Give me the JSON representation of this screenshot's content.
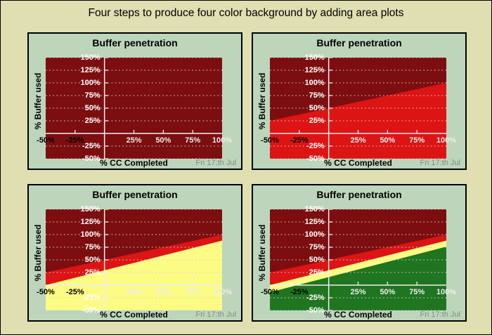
{
  "page": {
    "title": "Four steps to produce four color background by adding area plots",
    "background_color": "#DFDFB2",
    "border_color": "#000000"
  },
  "style": {
    "panel_background": "#BDD5BB",
    "panel_border": "#000000",
    "axis_color": "#EFEFEF",
    "grid_color": "#D2D2D2",
    "negative_x_label_color": "#000000",
    "positive_x_label_color": "#ECECEC",
    "y_label_color": "#FFFFFF",
    "date_color": "#828E82"
  },
  "chart_data": [
    {
      "type": "area",
      "title": "Buffer penetration",
      "xlabel": "% CC Completed",
      "ylabel": "% Buffer used",
      "date_label": "Fri 17:th Jul",
      "xlim": [
        -50,
        100
      ],
      "ylim": [
        -50,
        150
      ],
      "plot_background": "#7C0E10",
      "grid": "horizontal dotted white lines every 25%",
      "x_ticks": [
        {
          "label": "-50%",
          "value": -50,
          "color": "#000000"
        },
        {
          "label": "-25%",
          "value": -25,
          "color": "#000000"
        },
        {
          "label": "25%",
          "value": 25,
          "color": "#ECECEC"
        },
        {
          "label": "50%",
          "value": 50,
          "color": "#ECECEC"
        },
        {
          "label": "75%",
          "value": 75,
          "color": "#ECECEC"
        },
        {
          "label": "100%",
          "value": 100,
          "color": "#ECECEC"
        }
      ],
      "y_ticks": [
        {
          "label": "150%",
          "value": 150,
          "color": "#FFFFFF"
        },
        {
          "label": "125%",
          "value": 125,
          "color": "#FFFFFF"
        },
        {
          "label": "100%",
          "value": 100,
          "color": "#FFFFFF"
        },
        {
          "label": "75%",
          "value": 75,
          "color": "#FFFFFF"
        },
        {
          "label": "50%",
          "value": 50,
          "color": "#FFFFFF"
        },
        {
          "label": "25%",
          "value": 25,
          "color": "#FFFFFF"
        },
        {
          "label": "-25%",
          "value": -25,
          "color": "#FFFFFF"
        },
        {
          "label": "-50%",
          "value": -50,
          "color": "#FFFFFF"
        }
      ],
      "areas": []
    },
    {
      "type": "area",
      "title": "Buffer penetration",
      "xlabel": "% CC Completed",
      "ylabel": "% Buffer used",
      "date_label": "Fri 17:th Jul",
      "xlim": [
        -50,
        100
      ],
      "ylim": [
        -50,
        150
      ],
      "plot_background": "#7C0E10",
      "grid": "horizontal dotted white lines every 25%",
      "x_ticks": [
        {
          "label": "-50%",
          "value": -50,
          "color": "#000000"
        },
        {
          "label": "-25%",
          "value": -25,
          "color": "#000000"
        },
        {
          "label": "25%",
          "value": 25,
          "color": "#ECECEC"
        },
        {
          "label": "50%",
          "value": 50,
          "color": "#ECECEC"
        },
        {
          "label": "75%",
          "value": 75,
          "color": "#ECECEC"
        },
        {
          "label": "100%",
          "value": 100,
          "color": "#ECECEC"
        }
      ],
      "y_ticks": [
        {
          "label": "150%",
          "value": 150,
          "color": "#FFFFFF"
        },
        {
          "label": "125%",
          "value": 125,
          "color": "#FFFFFF"
        },
        {
          "label": "100%",
          "value": 100,
          "color": "#FFFFFF"
        },
        {
          "label": "75%",
          "value": 75,
          "color": "#FFFFFF"
        },
        {
          "label": "50%",
          "value": 50,
          "color": "#FFFFFF"
        },
        {
          "label": "25%",
          "value": 25,
          "color": "#FFFFFF"
        },
        {
          "label": "-25%",
          "value": -25,
          "color": "#FFFFFF"
        },
        {
          "label": "-50%",
          "value": -50,
          "color": "#FFFFFF"
        }
      ],
      "areas": [
        {
          "name": "red-zone",
          "color": "#DD1414",
          "fill": "below-line",
          "line": {
            "x": [
              -50,
              100
            ],
            "y": [
              25,
              100
            ]
          }
        }
      ]
    },
    {
      "type": "area",
      "title": "Buffer penetration",
      "xlabel": "% CC Completed",
      "ylabel": "% Buffer used",
      "date_label": "Fri 17:th Jul",
      "xlim": [
        -50,
        100
      ],
      "ylim": [
        -50,
        150
      ],
      "plot_background": "#7C0E10",
      "grid": "horizontal dotted white lines every 25%",
      "x_ticks": [
        {
          "label": "-50%",
          "value": -50,
          "color": "#000000"
        },
        {
          "label": "-25%",
          "value": -25,
          "color": "#000000"
        },
        {
          "label": "25%",
          "value": 25,
          "color": "#ECECEC"
        },
        {
          "label": "50%",
          "value": 50,
          "color": "#ECECEC"
        },
        {
          "label": "75%",
          "value": 75,
          "color": "#ECECEC"
        },
        {
          "label": "100%",
          "value": 100,
          "color": "#ECECEC"
        }
      ],
      "y_ticks": [
        {
          "label": "150%",
          "value": 150,
          "color": "#FFFFFF"
        },
        {
          "label": "125%",
          "value": 125,
          "color": "#FFFFFF"
        },
        {
          "label": "100%",
          "value": 100,
          "color": "#FFFFFF"
        },
        {
          "label": "75%",
          "value": 75,
          "color": "#FFFFFF"
        },
        {
          "label": "50%",
          "value": 50,
          "color": "#FFFFFF"
        },
        {
          "label": "25%",
          "value": 25,
          "color": "#FFFFFF"
        },
        {
          "label": "-25%",
          "value": -25,
          "color": "#FFFFFF"
        },
        {
          "label": "-50%",
          "value": -50,
          "color": "#FFFFFF"
        }
      ],
      "areas": [
        {
          "name": "red-zone",
          "color": "#DD1414",
          "fill": "below-line",
          "line": {
            "x": [
              -50,
              100
            ],
            "y": [
              25,
              100
            ]
          }
        },
        {
          "name": "yellow-zone",
          "color": "#FCFC84",
          "fill": "below-line",
          "line": {
            "x": [
              -50,
              100
            ],
            "y": [
              0,
              88
            ]
          }
        }
      ]
    },
    {
      "type": "area",
      "title": "Buffer penetration",
      "xlabel": "% CC Completed",
      "ylabel": "% Buffer used",
      "date_label": "Fri 17:th Jul",
      "xlim": [
        -50,
        100
      ],
      "ylim": [
        -50,
        150
      ],
      "plot_background": "#7C0E10",
      "grid": "horizontal dotted white lines every 25%",
      "x_ticks": [
        {
          "label": "-50%",
          "value": -50,
          "color": "#000000"
        },
        {
          "label": "-25%",
          "value": -25,
          "color": "#000000"
        },
        {
          "label": "25%",
          "value": 25,
          "color": "#ECECEC"
        },
        {
          "label": "50%",
          "value": 50,
          "color": "#ECECEC"
        },
        {
          "label": "75%",
          "value": 75,
          "color": "#ECECEC"
        },
        {
          "label": "100%",
          "value": 100,
          "color": "#ECECEC"
        }
      ],
      "y_ticks": [
        {
          "label": "150%",
          "value": 150,
          "color": "#FFFFFF"
        },
        {
          "label": "125%",
          "value": 125,
          "color": "#FFFFFF"
        },
        {
          "label": "100%",
          "value": 100,
          "color": "#FFFFFF"
        },
        {
          "label": "75%",
          "value": 75,
          "color": "#FFFFFF"
        },
        {
          "label": "50%",
          "value": 50,
          "color": "#FFFFFF"
        },
        {
          "label": "25%",
          "value": 25,
          "color": "#FFFFFF"
        },
        {
          "label": "-25%",
          "value": -25,
          "color": "#FFFFFF"
        },
        {
          "label": "-50%",
          "value": -50,
          "color": "#FFFFFF"
        }
      ],
      "areas": [
        {
          "name": "red-zone",
          "color": "#DD1414",
          "fill": "below-line",
          "line": {
            "x": [
              -50,
              100
            ],
            "y": [
              25,
              100
            ]
          }
        },
        {
          "name": "yellow-zone",
          "color": "#FCFC84",
          "fill": "below-line",
          "line": {
            "x": [
              -50,
              100
            ],
            "y": [
              0,
              88
            ]
          }
        },
        {
          "name": "green-zone",
          "color": "#1F7520",
          "fill": "below-line",
          "line": {
            "x": [
              -50,
              100
            ],
            "y": [
              -14,
              76
            ]
          }
        }
      ]
    }
  ]
}
